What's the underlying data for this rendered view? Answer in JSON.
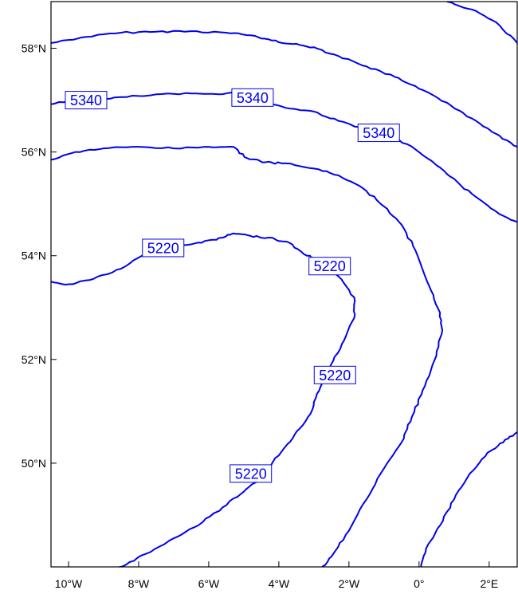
{
  "map": {
    "lon_range": [
      -10.5,
      2.8
    ],
    "lat_range": [
      48.0,
      58.9
    ],
    "colors": {
      "contour": "#0000ee",
      "frame": "#000000",
      "background": "#ffffff"
    },
    "x_ticks": [
      {
        "lon": -10,
        "label": "10°W"
      },
      {
        "lon": -8,
        "label": "8°W"
      },
      {
        "lon": -6,
        "label": "6°W"
      },
      {
        "lon": -4,
        "label": "4°W"
      },
      {
        "lon": -2,
        "label": "2°W"
      },
      {
        "lon": 0,
        "label": "0°"
      },
      {
        "lon": 2,
        "label": "2°E"
      }
    ],
    "y_ticks": [
      {
        "lat": 58,
        "label": "58°N"
      },
      {
        "lat": 56,
        "label": "56°N"
      },
      {
        "lat": 54,
        "label": "54°N"
      },
      {
        "lat": 52,
        "label": "52°N"
      },
      {
        "lat": 50,
        "label": "50°N"
      }
    ],
    "contours": [
      {
        "id": "upper-outer",
        "points": [
          [
            -10.5,
            58.1
          ],
          [
            -9.5,
            58.22
          ],
          [
            -8.5,
            58.3
          ],
          [
            -7.5,
            58.32
          ],
          [
            -6.5,
            58.33
          ],
          [
            -5.5,
            58.3
          ],
          [
            -4.8,
            58.25
          ],
          [
            -4.2,
            58.15
          ],
          [
            -3.6,
            58.08
          ],
          [
            -3.0,
            58.02
          ],
          [
            -2.3,
            57.85
          ],
          [
            -1.5,
            57.65
          ],
          [
            -0.7,
            57.45
          ],
          [
            0.0,
            57.22
          ],
          [
            0.8,
            56.95
          ],
          [
            1.5,
            56.65
          ],
          [
            2.2,
            56.35
          ],
          [
            2.8,
            56.1
          ]
        ],
        "labels": []
      },
      {
        "id": "corner-top-right",
        "points": [
          [
            0.8,
            58.9
          ],
          [
            1.5,
            58.75
          ],
          [
            2.2,
            58.5
          ],
          [
            2.8,
            58.1
          ]
        ],
        "labels": []
      },
      {
        "id": "5340-line",
        "points": [
          [
            -10.5,
            56.92
          ],
          [
            -9.8,
            57.0
          ],
          [
            -9.0,
            57.02
          ],
          [
            -8.0,
            57.08
          ],
          [
            -7.0,
            57.12
          ],
          [
            -6.0,
            57.12
          ],
          [
            -5.2,
            57.14
          ],
          [
            -4.5,
            57.0
          ],
          [
            -3.8,
            56.85
          ],
          [
            -3.0,
            56.78
          ],
          [
            -2.3,
            56.6
          ],
          [
            -1.6,
            56.46
          ],
          [
            -0.8,
            56.3
          ],
          [
            -0.1,
            56.05
          ],
          [
            0.6,
            55.7
          ],
          [
            1.2,
            55.35
          ],
          [
            1.8,
            55.05
          ],
          [
            2.3,
            54.8
          ],
          [
            2.8,
            54.65
          ]
        ],
        "labels": [
          {
            "lon": -9.5,
            "lat": 57.0,
            "text": "5340"
          },
          {
            "lon": -4.75,
            "lat": 57.05,
            "text": "5340"
          },
          {
            "lon": -1.15,
            "lat": 56.37,
            "text": "5340"
          }
        ]
      },
      {
        "id": "middle-line",
        "points": [
          [
            -10.5,
            55.85
          ],
          [
            -9.8,
            56.0
          ],
          [
            -9.0,
            56.07
          ],
          [
            -8.0,
            56.1
          ],
          [
            -7.0,
            56.07
          ],
          [
            -6.0,
            56.1
          ],
          [
            -5.3,
            56.1
          ],
          [
            -4.9,
            55.88
          ],
          [
            -4.4,
            55.8
          ],
          [
            -3.8,
            55.78
          ],
          [
            -3.0,
            55.68
          ],
          [
            -2.3,
            55.55
          ],
          [
            -1.6,
            55.3
          ],
          [
            -1.0,
            54.95
          ],
          [
            -0.5,
            54.6
          ],
          [
            -0.1,
            54.1
          ],
          [
            0.3,
            53.4
          ],
          [
            0.6,
            52.9
          ],
          [
            0.65,
            52.5
          ],
          [
            0.45,
            52.0
          ],
          [
            0.1,
            51.4
          ],
          [
            -0.2,
            50.9
          ],
          [
            -0.5,
            50.4
          ],
          [
            -1.0,
            49.9
          ],
          [
            -1.5,
            49.3
          ],
          [
            -2.0,
            48.7
          ],
          [
            -2.5,
            48.2
          ],
          [
            -2.85,
            47.9
          ]
        ],
        "labels": []
      },
      {
        "id": "5220-line",
        "points": [
          [
            -10.5,
            53.5
          ],
          [
            -10.0,
            53.45
          ],
          [
            -9.3,
            53.55
          ],
          [
            -8.5,
            53.75
          ],
          [
            -7.8,
            54.05
          ],
          [
            -7.0,
            54.2
          ],
          [
            -6.2,
            54.25
          ],
          [
            -5.6,
            54.35
          ],
          [
            -5.3,
            54.43
          ],
          [
            -4.8,
            54.38
          ],
          [
            -4.3,
            54.35
          ],
          [
            -3.7,
            54.25
          ],
          [
            -3.2,
            54.0
          ],
          [
            -2.8,
            53.9
          ],
          [
            -2.3,
            53.6
          ],
          [
            -1.85,
            53.2
          ],
          [
            -1.85,
            52.8
          ],
          [
            -2.2,
            52.3
          ],
          [
            -2.6,
            51.8
          ],
          [
            -2.85,
            51.4
          ],
          [
            -3.1,
            50.95
          ],
          [
            -3.55,
            50.55
          ],
          [
            -4.0,
            50.15
          ],
          [
            -4.5,
            49.75
          ],
          [
            -5.0,
            49.45
          ],
          [
            -5.6,
            49.15
          ],
          [
            -6.3,
            48.8
          ],
          [
            -7.0,
            48.55
          ],
          [
            -7.8,
            48.25
          ],
          [
            -8.5,
            48.0
          ],
          [
            -8.9,
            47.9
          ]
        ],
        "labels": [
          {
            "lon": -7.3,
            "lat": 54.15,
            "text": "5220"
          },
          {
            "lon": -2.55,
            "lat": 53.8,
            "text": "5220"
          },
          {
            "lon": -2.4,
            "lat": 51.7,
            "text": "5220"
          },
          {
            "lon": -4.8,
            "lat": 49.8,
            "text": "5220"
          }
        ]
      },
      {
        "id": "corner-bottom-right",
        "points": [
          [
            0.0,
            47.9
          ],
          [
            0.2,
            48.35
          ],
          [
            0.6,
            48.8
          ],
          [
            1.0,
            49.3
          ],
          [
            1.45,
            49.8
          ],
          [
            1.95,
            50.2
          ],
          [
            2.4,
            50.4
          ],
          [
            2.8,
            50.6
          ]
        ],
        "labels": []
      }
    ]
  }
}
